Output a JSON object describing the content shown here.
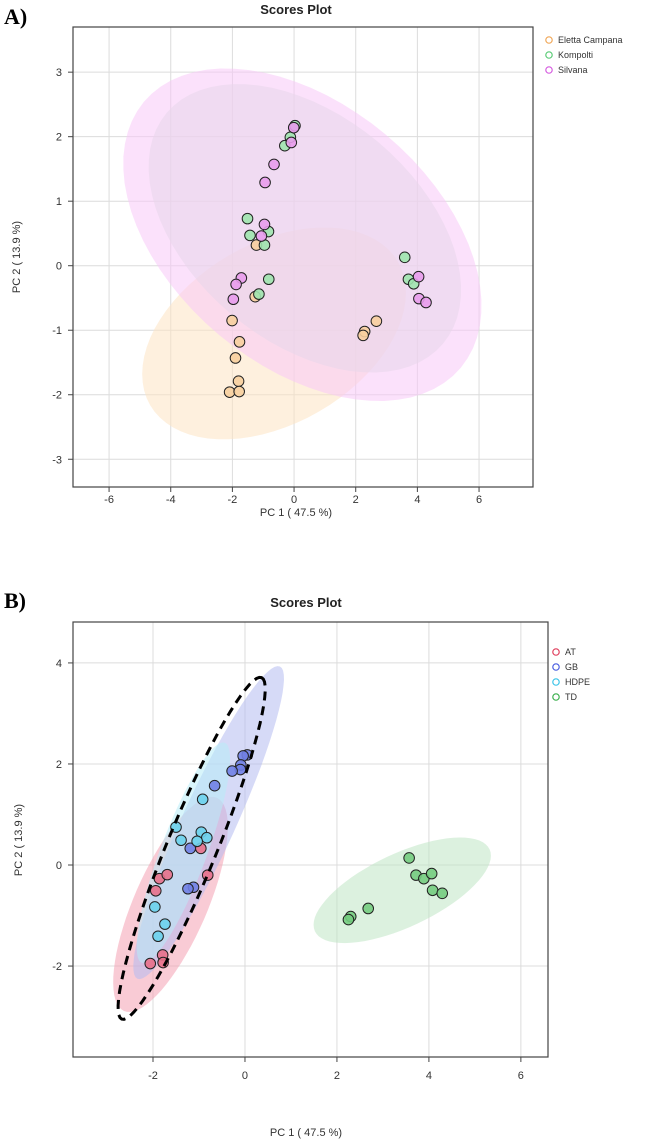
{
  "chart_data": [
    {
      "panel_label": "A)",
      "type": "scatter",
      "title": "Scores Plot",
      "xlabel": "PC 1 ( 47.5 %)",
      "ylabel": "PC 2 ( 13.9 %)",
      "xlim": [
        -7.17,
        7.75
      ],
      "ylim": [
        -3.43,
        3.7
      ],
      "xticks": [
        -6,
        -4,
        -2,
        0,
        2,
        4,
        6
      ],
      "yticks": [
        -3,
        -2,
        -1,
        0,
        1,
        2,
        3
      ],
      "grid": true,
      "legend_position": "top-right",
      "series": [
        {
          "name": "Eletta Campana",
          "color": "#f0a85a",
          "fill": "#f7cf9f",
          "ellipse_fill": "#fde3c3",
          "ellipse": {
            "center": [
              -0.65,
              -1.05
            ],
            "a": [
              4.02,
              1.11
            ],
            "b": [
              1.46,
              -1.21
            ]
          },
          "points": [
            [
              -1.22,
              0.32
            ],
            [
              -1.26,
              -0.48
            ],
            [
              -2.01,
              -0.85
            ],
            [
              -1.77,
              -1.18
            ],
            [
              -1.9,
              -1.43
            ],
            [
              -1.8,
              -1.79
            ],
            [
              -2.09,
              -1.96
            ],
            [
              -1.78,
              -1.95
            ],
            [
              2.67,
              -0.86
            ],
            [
              2.29,
              -1.02
            ],
            [
              2.24,
              -1.08
            ]
          ]
        },
        {
          "name": "Kompolti",
          "color": "#5ccc78",
          "fill": "#9ee4ae",
          "ellipse_fill": "#d4e8d8",
          "ellipse": {
            "center": [
              0.35,
              0.58
            ],
            "a": [
              4.48,
              -1.79
            ],
            "b": [
              -2.37,
              -1.34
            ]
          },
          "points": [
            [
              0.03,
              2.17
            ],
            [
              -0.12,
              1.99
            ],
            [
              -0.3,
              1.86
            ],
            [
              -1.51,
              0.73
            ],
            [
              -0.83,
              0.53
            ],
            [
              -1.43,
              0.47
            ],
            [
              -0.96,
              0.32
            ],
            [
              -0.82,
              -0.21
            ],
            [
              -1.14,
              -0.44
            ],
            [
              3.59,
              0.13
            ],
            [
              3.71,
              -0.21
            ],
            [
              3.88,
              -0.28
            ]
          ]
        },
        {
          "name": "Silvana",
          "color": "#d65ee0",
          "fill": "#e89cec",
          "ellipse_fill": "#f7c8f7",
          "ellipse": {
            "center": [
              0.27,
              0.48
            ],
            "a": [
              5.14,
              -2.06
            ],
            "b": [
              -2.71,
              -1.55
            ]
          },
          "points": [
            [
              -0.01,
              2.14
            ],
            [
              -0.09,
              1.91
            ],
            [
              -0.65,
              1.57
            ],
            [
              -0.94,
              1.29
            ],
            [
              -0.96,
              0.64
            ],
            [
              -1.06,
              0.46
            ],
            [
              -1.71,
              -0.19
            ],
            [
              -1.88,
              -0.29
            ],
            [
              -1.97,
              -0.52
            ],
            [
              4.04,
              -0.17
            ],
            [
              4.05,
              -0.51
            ],
            [
              4.28,
              -0.57
            ]
          ]
        }
      ]
    },
    {
      "panel_label": "B)",
      "type": "scatter",
      "title": "Scores Plot",
      "xlabel": "PC 1 ( 47.5 %)",
      "ylabel": "PC 2 ( 13.9 %)",
      "xlim": [
        -3.74,
        6.59
      ],
      "ylim": [
        -3.8,
        4.81
      ],
      "xticks": [
        -2,
        0,
        2,
        4,
        6
      ],
      "yticks": [
        -2,
        0,
        2,
        4
      ],
      "grid": true,
      "legend_position": "top-right",
      "series": [
        {
          "name": "AT",
          "color": "#e0405e",
          "fill": "#e8708a",
          "ellipse_fill": "#f4a0b2",
          "ellipse": {
            "center": [
              -1.62,
              -0.78
            ],
            "a": [
              1.01,
              2.11
            ],
            "b": [
              0.73,
              -0.29
            ]
          },
          "points": [
            [
              -1.86,
              -0.27
            ],
            [
              -1.69,
              -0.19
            ],
            [
              -1.94,
              -0.51
            ],
            [
              -0.81,
              -0.2
            ],
            [
              -0.96,
              0.33
            ],
            [
              -1.79,
              -1.78
            ],
            [
              -1.78,
              -1.93
            ],
            [
              -2.06,
              -1.95
            ]
          ]
        },
        {
          "name": "GB",
          "color": "#4a5ee0",
          "fill": "#7080e4",
          "ellipse_fill": "#b4bcf0",
          "ellipse": {
            "center": [
              -0.79,
              0.84
            ],
            "a": [
              1.55,
              3.09
            ],
            "b": [
              0.53,
              -0.22
            ]
          },
          "points": [
            [
              0.05,
              2.18
            ],
            [
              -0.04,
              2.16
            ],
            [
              -0.09,
              1.98
            ],
            [
              -0.1,
              1.89
            ],
            [
              -0.28,
              1.86
            ],
            [
              -0.66,
              1.57
            ],
            [
              -1.19,
              0.33
            ],
            [
              -1.12,
              -0.44
            ],
            [
              -1.24,
              -0.47
            ]
          ]
        },
        {
          "name": "HDPE",
          "color": "#3cc4e8",
          "fill": "#6cd2ec",
          "ellipse_fill": "#b8ecf8",
          "ellipse": {
            "center": [
              -1.34,
              0.24
            ],
            "a": [
              0.9,
              2.18
            ],
            "b": [
              0.47,
              -0.16
            ]
          },
          "points": [
            [
              -0.92,
              1.3
            ],
            [
              -1.5,
              0.75
            ],
            [
              -1.39,
              0.49
            ],
            [
              -0.95,
              0.65
            ],
            [
              -0.83,
              0.54
            ],
            [
              -1.04,
              0.47
            ],
            [
              -1.96,
              -0.83
            ],
            [
              -1.74,
              -1.17
            ],
            [
              -1.89,
              -1.41
            ]
          ]
        },
        {
          "name": "TD",
          "color": "#3cb04e",
          "fill": "#74cc80",
          "ellipse_fill": "#bfe6c4",
          "ellipse": {
            "center": [
              3.42,
              -0.5
            ],
            "a": [
              1.9,
              0.81
            ],
            "b": [
              0.33,
              -0.66
            ]
          },
          "points": [
            [
              3.57,
              0.14
            ],
            [
              3.72,
              -0.2
            ],
            [
              3.89,
              -0.27
            ],
            [
              4.06,
              -0.17
            ],
            [
              4.08,
              -0.5
            ],
            [
              4.29,
              -0.56
            ],
            [
              2.68,
              -0.86
            ],
            [
              2.3,
              -1.02
            ],
            [
              2.25,
              -1.08
            ]
          ]
        }
      ],
      "annotation_ellipse": {
        "style": "dashed",
        "color": "#000000",
        "center": [
          -1.16,
          0.33
        ],
        "a": [
          1.52,
          3.38
        ],
        "b": [
          0.5,
          -0.19
        ]
      }
    }
  ]
}
